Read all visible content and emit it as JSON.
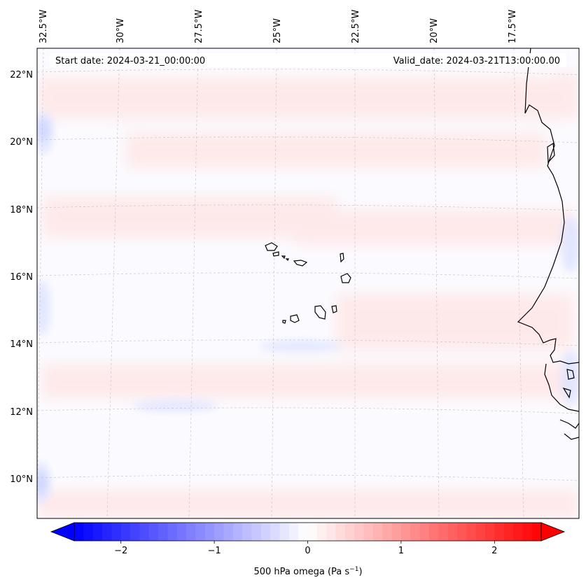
{
  "map": {
    "start_date_label": "Start date: 2024-03-21_00:00:00",
    "valid_date_label": "Valid_date: 2024-03-21T13:00:00.00",
    "lon_labels": [
      "32.5°W",
      "30°W",
      "27.5°W",
      "25°W",
      "22.5°W",
      "20°W",
      "17.5°W"
    ],
    "lat_labels": [
      "22°N",
      "20°N",
      "18°N",
      "16°N",
      "14°N",
      "12°N",
      "10°N"
    ],
    "field": "500 hPa omega",
    "colormap": "bwr",
    "gridlines": true
  },
  "colorbar": {
    "label": "500 hPa omega (Pa s",
    "label_exponent": "−1",
    "label_close": ")",
    "ticks": [
      "−2",
      "−1",
      "0",
      "1",
      "2"
    ],
    "tick_values": [
      -2,
      -1,
      0,
      1,
      2
    ],
    "range": [
      -2.5,
      2.5
    ],
    "extend": "both",
    "colors": {
      "min": "#0000ff",
      "mid": "#ffffff",
      "max": "#ff0000"
    }
  }
}
